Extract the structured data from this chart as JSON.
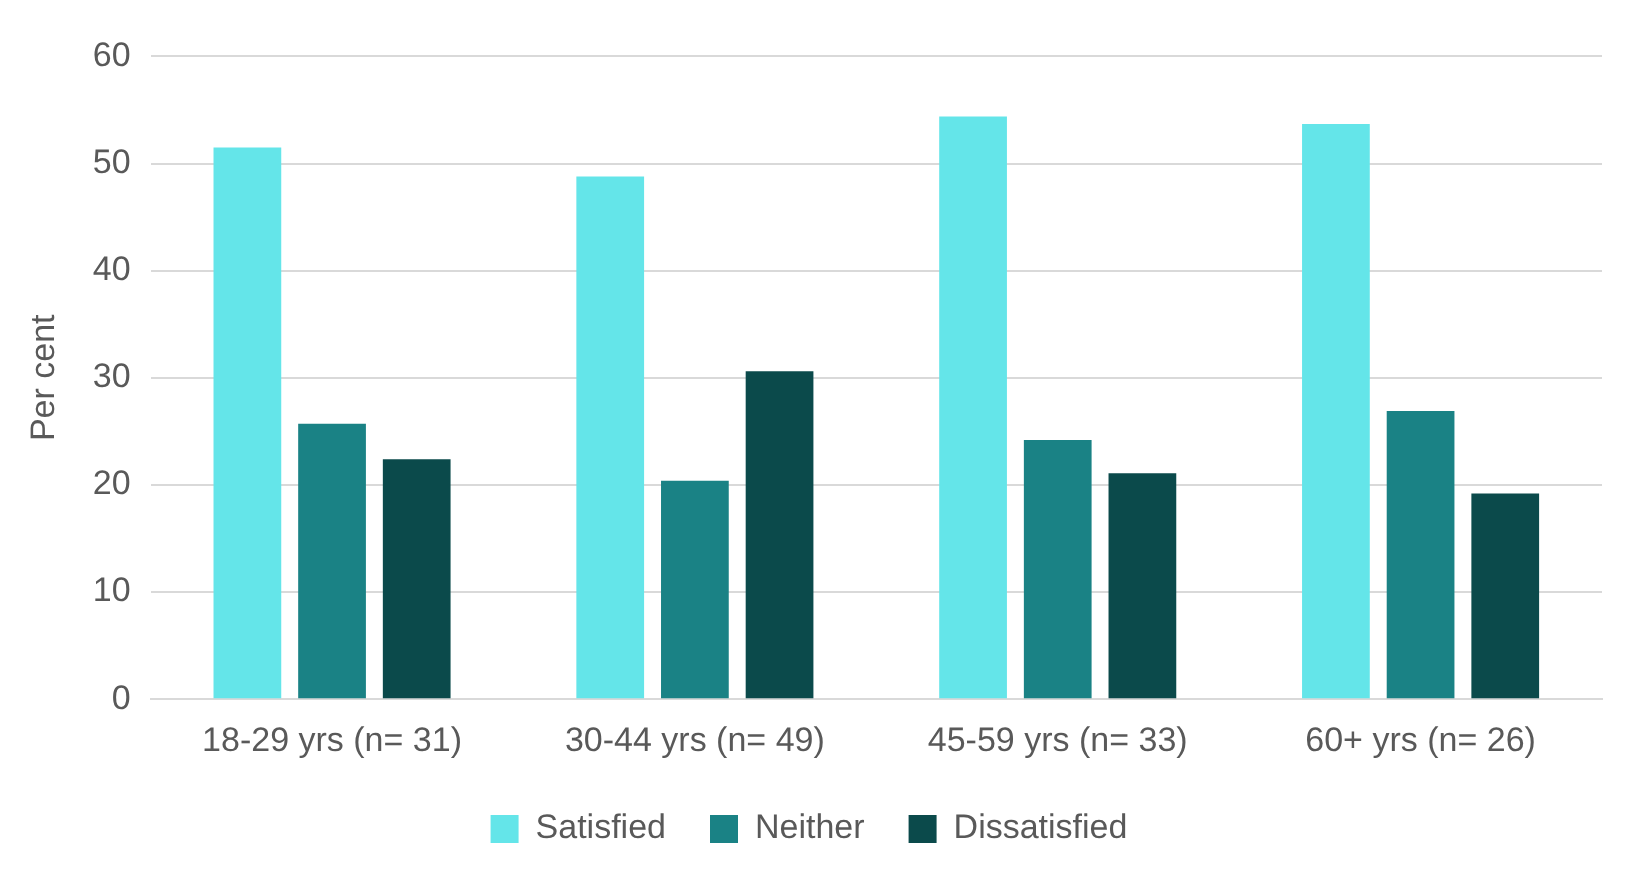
{
  "chart_data": {
    "type": "bar",
    "ylabel": "Per cent",
    "categories": [
      "18-29 yrs (n= 31)",
      "30-44 yrs (n= 49)",
      "45-59 yrs (n= 33)",
      "60+ yrs (n= 26)"
    ],
    "series": [
      {
        "name": "Satisfied",
        "color": "#64e5e9",
        "values": [
          51.5,
          48.8,
          54.4,
          53.7
        ]
      },
      {
        "name": "Neither",
        "color": "#1a8285",
        "values": [
          25.7,
          20.4,
          24.2,
          26.9
        ]
      },
      {
        "name": "Dissatisfied",
        "color": "#0b4a4b",
        "values": [
          22.4,
          30.6,
          21.1,
          19.2
        ]
      }
    ],
    "ylim": [
      0,
      60
    ],
    "yticks": [
      0,
      10,
      20,
      30,
      40,
      50,
      60
    ],
    "grid": "y",
    "legend": "bottom"
  }
}
